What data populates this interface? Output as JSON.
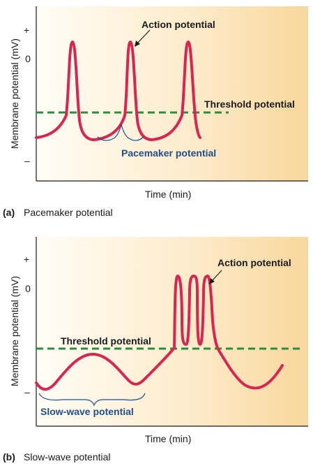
{
  "panel_a": {
    "ylabel": "Membrane potential (mV)",
    "tick_plus": "+",
    "tick_zero": "0",
    "tick_minus": "–",
    "xlabel": "Time (min)",
    "label_action": "Action potential",
    "label_threshold": "Threshold potential",
    "label_pacemaker": "Pacemaker potential",
    "caption_letter": "(a)",
    "caption_text": "Pacemaker potential"
  },
  "panel_b": {
    "ylabel": "Membrane potential (mV)",
    "tick_plus": "+",
    "tick_zero": "0",
    "tick_minus": "–",
    "xlabel": "Time (min)",
    "label_action": "Action potential",
    "label_threshold": "Threshold potential",
    "label_slowwave": "Slow-wave potential",
    "caption_letter": "(b)",
    "caption_text": "Slow-wave potential"
  },
  "colors": {
    "trace": "#d7264f",
    "threshold": "#2e8b3e",
    "bracket": "#1f4e8c",
    "bg_light": "#fffdf6",
    "bg_dark": "#f8d79c"
  }
}
